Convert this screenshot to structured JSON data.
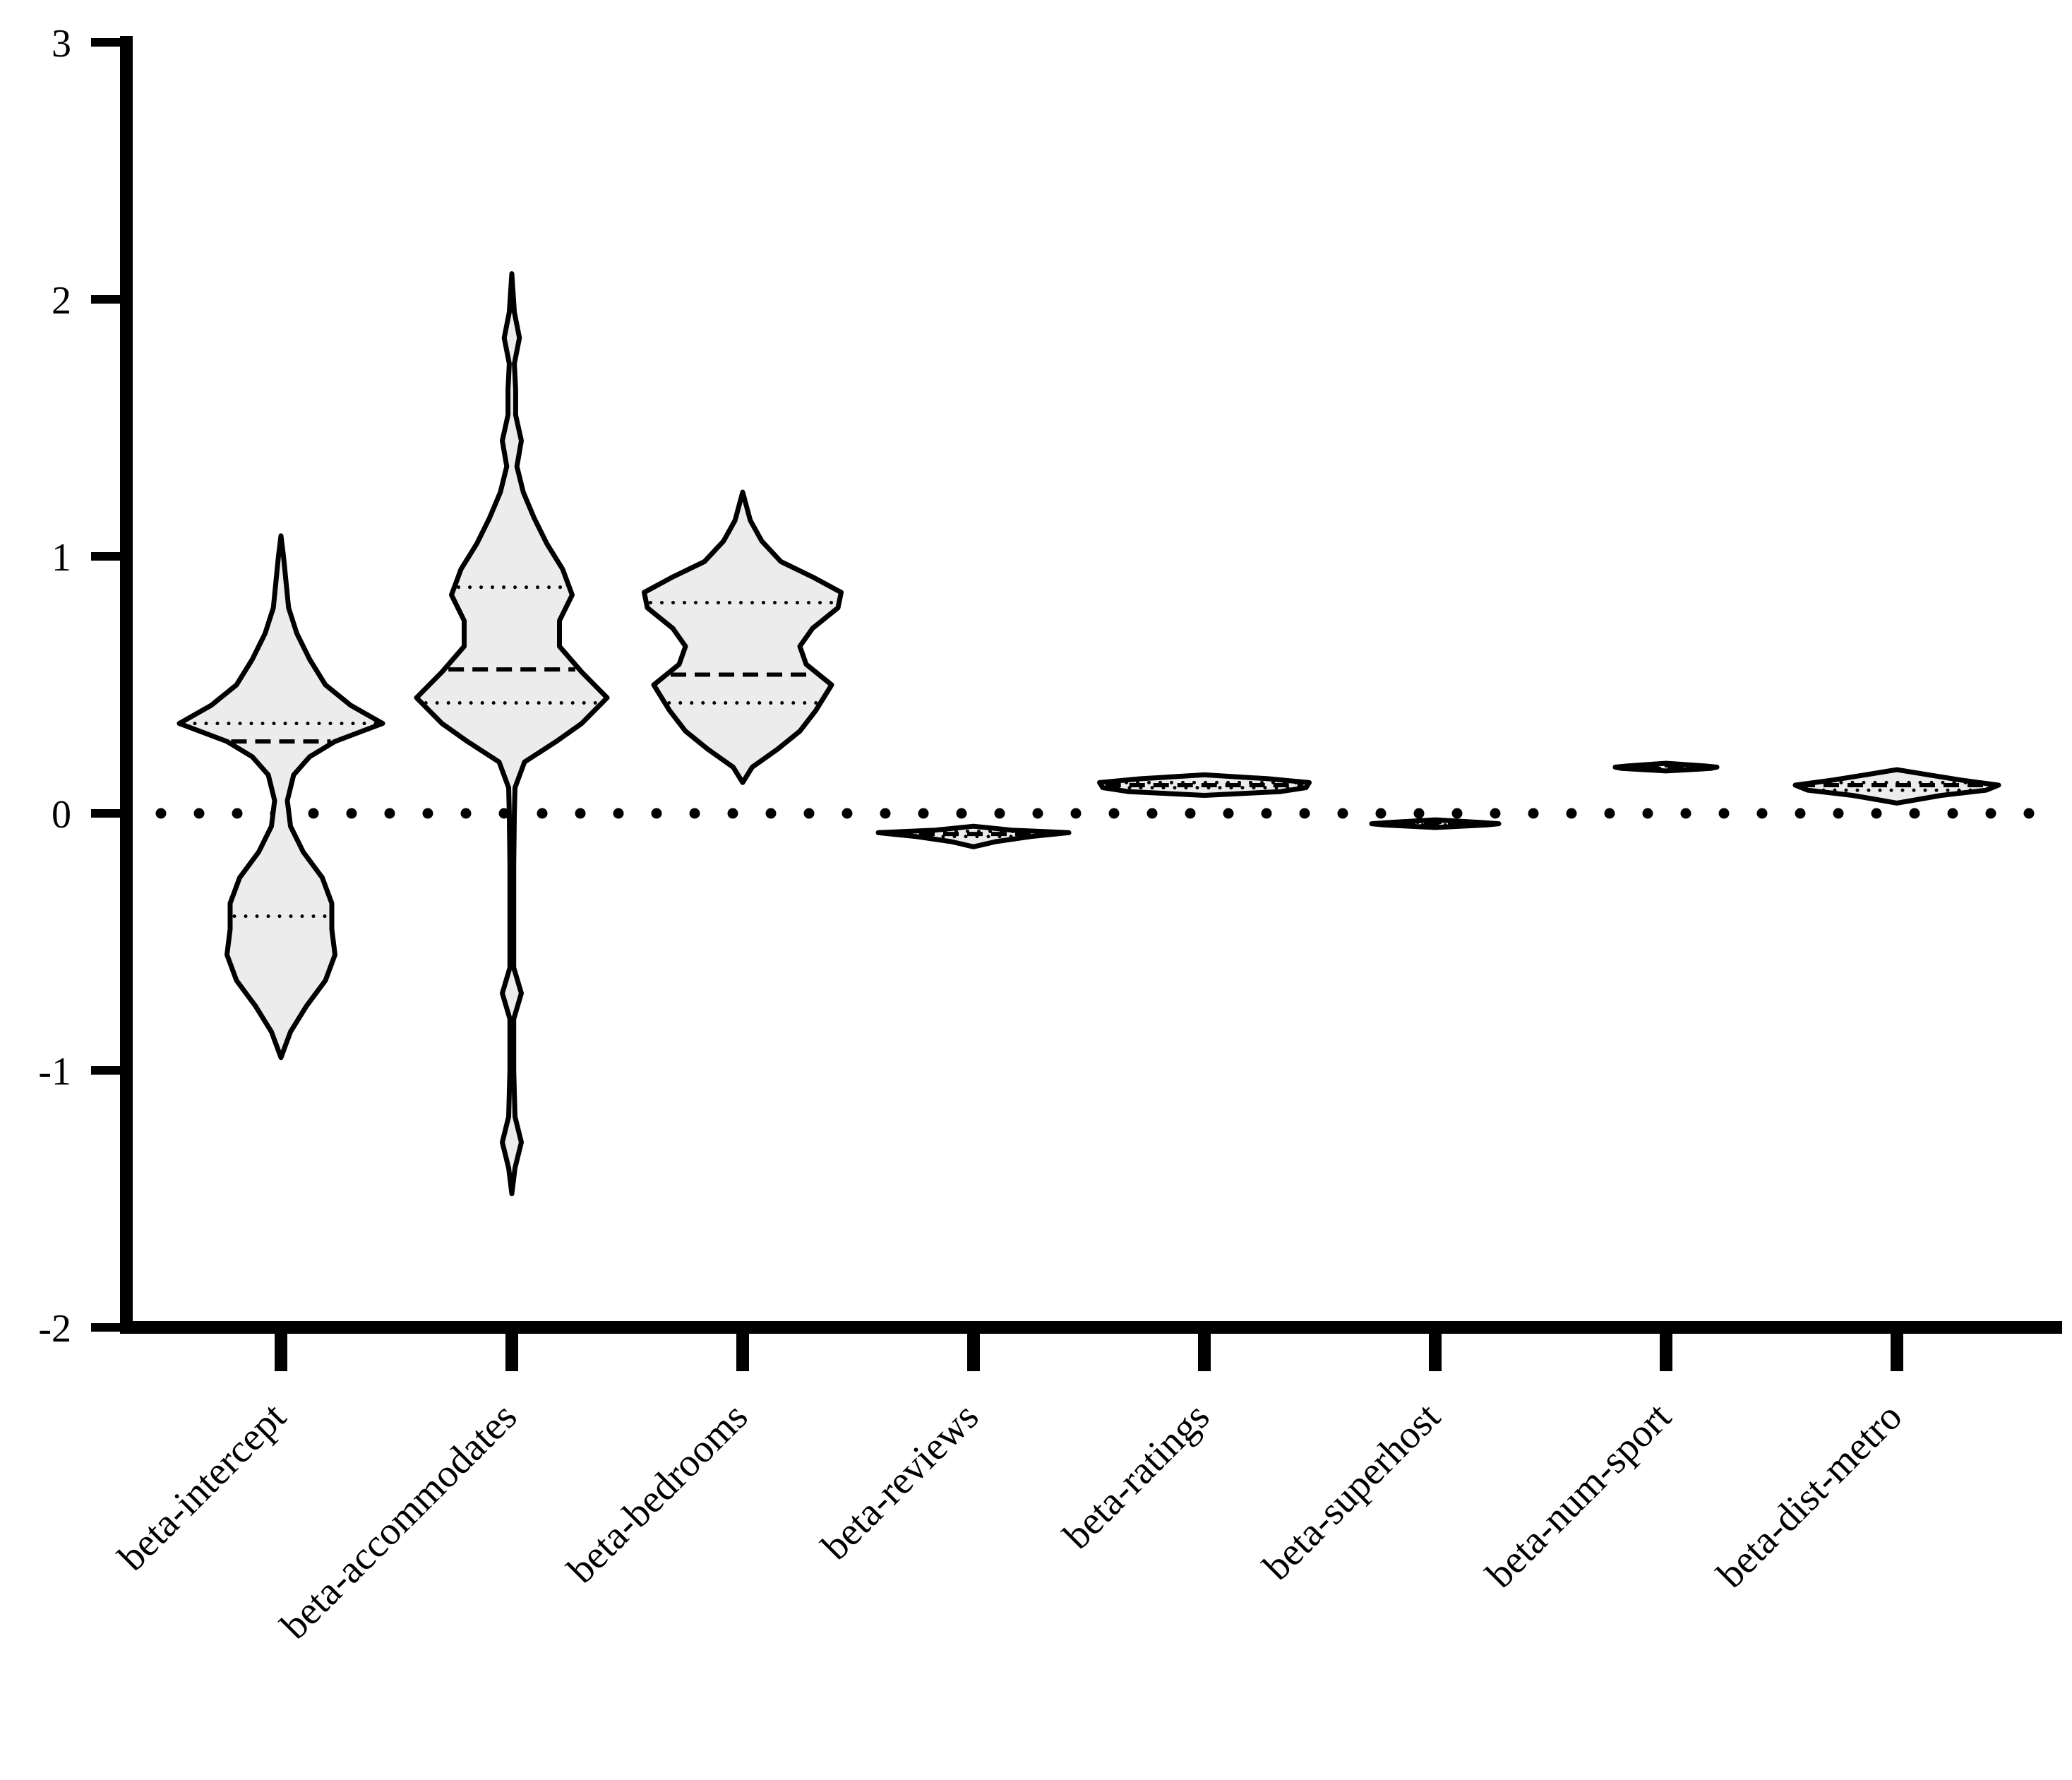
{
  "chart_data": {
    "type": "violin",
    "title": "",
    "xlabel": "",
    "ylabel": "",
    "ylim": [
      -2,
      3
    ],
    "yticks": [
      -2,
      -1,
      0,
      1,
      2,
      3
    ],
    "ytick_labels": [
      "-2",
      "-1",
      "0",
      "1",
      "2",
      "3"
    ],
    "reference_line": {
      "y": 0,
      "style": "dotted"
    },
    "colors": {
      "fill": "#ececec",
      "stroke": "#000000"
    },
    "categories": [
      "beta-intercept",
      "beta-accommodates",
      "beta-bedrooms",
      "beta-reviews",
      "beta-ratings",
      "beta-superhost",
      "beta-num-sport",
      "beta-dist-metro"
    ],
    "series": [
      {
        "name": "beta-intercept",
        "median": 0.28,
        "q1": -0.4,
        "q3": 0.35,
        "profile": [
          [
            -0.95,
            0.0
          ],
          [
            -0.85,
            0.015
          ],
          [
            -0.75,
            0.04
          ],
          [
            -0.65,
            0.07
          ],
          [
            -0.55,
            0.085
          ],
          [
            -0.45,
            0.08
          ],
          [
            -0.35,
            0.08
          ],
          [
            -0.25,
            0.065
          ],
          [
            -0.15,
            0.035
          ],
          [
            -0.05,
            0.015
          ],
          [
            0.05,
            0.01
          ],
          [
            0.15,
            0.02
          ],
          [
            0.22,
            0.045
          ],
          [
            0.28,
            0.085
          ],
          [
            0.35,
            0.16
          ],
          [
            0.42,
            0.11
          ],
          [
            0.5,
            0.07
          ],
          [
            0.6,
            0.045
          ],
          [
            0.7,
            0.025
          ],
          [
            0.8,
            0.012
          ],
          [
            0.9,
            0.008
          ],
          [
            1.0,
            0.004
          ],
          [
            1.08,
            0.0
          ]
        ]
      },
      {
        "name": "beta-accommodates",
        "median": 0.56,
        "q1": 0.43,
        "q3": 0.88,
        "profile": [
          [
            -1.48,
            0.0
          ],
          [
            -1.38,
            0.005
          ],
          [
            -1.28,
            0.015
          ],
          [
            -1.18,
            0.005
          ],
          [
            -1.0,
            0.003
          ],
          [
            -0.8,
            0.003
          ],
          [
            -0.7,
            0.015
          ],
          [
            -0.6,
            0.003
          ],
          [
            -0.4,
            0.003
          ],
          [
            -0.2,
            0.003
          ],
          [
            0.0,
            0.004
          ],
          [
            0.1,
            0.005
          ],
          [
            0.2,
            0.02
          ],
          [
            0.28,
            0.07
          ],
          [
            0.35,
            0.11
          ],
          [
            0.45,
            0.15
          ],
          [
            0.55,
            0.11
          ],
          [
            0.65,
            0.075
          ],
          [
            0.75,
            0.075
          ],
          [
            0.85,
            0.095
          ],
          [
            0.95,
            0.08
          ],
          [
            1.05,
            0.055
          ],
          [
            1.15,
            0.035
          ],
          [
            1.25,
            0.018
          ],
          [
            1.35,
            0.008
          ],
          [
            1.45,
            0.015
          ],
          [
            1.55,
            0.006
          ],
          [
            1.65,
            0.006
          ],
          [
            1.75,
            0.004
          ],
          [
            1.85,
            0.012
          ],
          [
            1.95,
            0.004
          ],
          [
            2.1,
            0.0
          ]
        ]
      },
      {
        "name": "beta-bedrooms",
        "median": 0.54,
        "q1": 0.43,
        "q3": 0.82,
        "profile": [
          [
            0.12,
            0.0
          ],
          [
            0.18,
            0.015
          ],
          [
            0.25,
            0.055
          ],
          [
            0.32,
            0.09
          ],
          [
            0.4,
            0.115
          ],
          [
            0.5,
            0.14
          ],
          [
            0.58,
            0.1
          ],
          [
            0.65,
            0.09
          ],
          [
            0.72,
            0.11
          ],
          [
            0.8,
            0.15
          ],
          [
            0.86,
            0.155
          ],
          [
            0.92,
            0.11
          ],
          [
            0.98,
            0.06
          ],
          [
            1.06,
            0.03
          ],
          [
            1.14,
            0.012
          ],
          [
            1.25,
            0.0
          ]
        ]
      },
      {
        "name": "beta-reviews",
        "median": -0.08,
        "q1": -0.09,
        "q3": -0.07,
        "profile": [
          [
            -0.13,
            0.0
          ],
          [
            -0.11,
            0.035
          ],
          [
            -0.09,
            0.09
          ],
          [
            -0.075,
            0.15
          ],
          [
            -0.065,
            0.06
          ],
          [
            -0.05,
            0.0
          ]
        ]
      },
      {
        "name": "beta-ratings",
        "median": 0.11,
        "q1": 0.1,
        "q3": 0.12,
        "profile": [
          [
            0.07,
            0.0
          ],
          [
            0.085,
            0.12
          ],
          [
            0.1,
            0.16
          ],
          [
            0.12,
            0.165
          ],
          [
            0.135,
            0.1
          ],
          [
            0.15,
            0.0
          ]
        ]
      },
      {
        "name": "beta-superhost",
        "median": -0.04,
        "q1": -0.045,
        "q3": -0.035,
        "profile": [
          [
            -0.055,
            0.0
          ],
          [
            -0.045,
            0.08
          ],
          [
            -0.04,
            0.1
          ],
          [
            -0.035,
            0.07
          ],
          [
            -0.025,
            0.0
          ]
        ]
      },
      {
        "name": "beta-num-sport",
        "median": 0.18,
        "q1": 0.175,
        "q3": 0.185,
        "profile": [
          [
            0.165,
            0.0
          ],
          [
            0.175,
            0.07
          ],
          [
            0.18,
            0.08
          ],
          [
            0.185,
            0.06
          ],
          [
            0.195,
            0.0
          ]
        ]
      },
      {
        "name": "beta-dist-metro",
        "median": 0.11,
        "q1": 0.09,
        "q3": 0.12,
        "profile": [
          [
            0.04,
            0.0
          ],
          [
            0.07,
            0.07
          ],
          [
            0.09,
            0.14
          ],
          [
            0.11,
            0.16
          ],
          [
            0.13,
            0.1
          ],
          [
            0.15,
            0.05
          ],
          [
            0.17,
            0.0
          ]
        ]
      }
    ]
  }
}
